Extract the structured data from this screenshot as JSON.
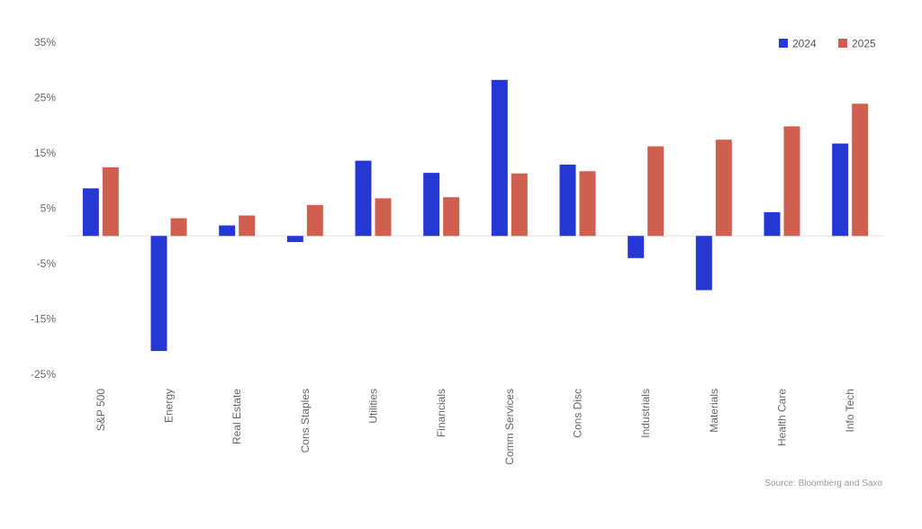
{
  "chart_data": {
    "type": "bar",
    "categories": [
      "S&P 500",
      "Energy",
      "Real Estate",
      "Cons Staples",
      "Utilities",
      "Financials",
      "Comm Services",
      "Cons Disc",
      "Industrials",
      "Materials",
      "Health Care",
      "Info Tech"
    ],
    "series": [
      {
        "name": "2024",
        "color": "#2638d4",
        "values": [
          8.6,
          -20.8,
          1.9,
          -1.1,
          13.6,
          11.4,
          28.2,
          12.9,
          -4.0,
          -9.8,
          4.3,
          16.7
        ]
      },
      {
        "name": "2025",
        "color": "#cf5f4f",
        "values": [
          12.4,
          3.2,
          3.7,
          5.6,
          6.8,
          7.0,
          11.3,
          11.7,
          16.2,
          17.4,
          19.8,
          23.9
        ]
      }
    ],
    "y_ticks": [
      35,
      25,
      15,
      5,
      -5,
      -15,
      -25
    ],
    "y_tick_labels": [
      "35%",
      "25%",
      "15%",
      "5%",
      "-5%",
      "-15%",
      "-25%"
    ],
    "ylim": [
      -25,
      35
    ],
    "legend_position": "top-right",
    "source": "Source: Bloomberg and Saxo"
  }
}
